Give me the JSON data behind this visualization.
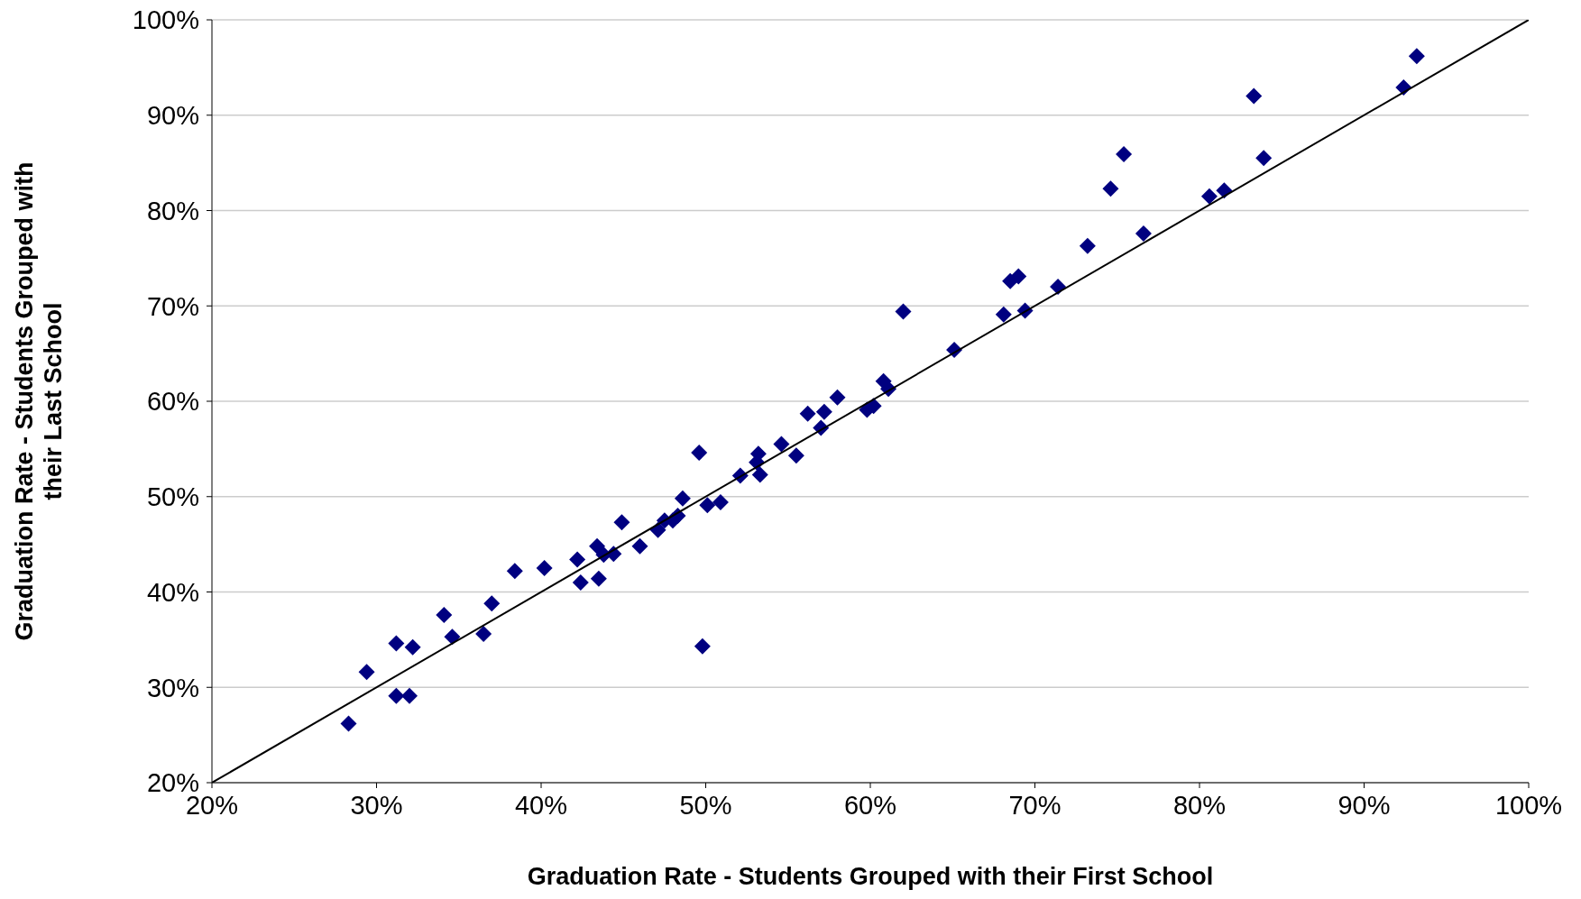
{
  "chart_data": {
    "type": "scatter",
    "xlabel": "Graduation Rate - Students Grouped with their First School",
    "ylabel": "Graduation Rate - Students Grouped with their Last School",
    "xlim": [
      20,
      100
    ],
    "ylim": [
      20,
      100
    ],
    "xticks": [
      {
        "value": 20,
        "label": "20%"
      },
      {
        "value": 30,
        "label": "30%"
      },
      {
        "value": 40,
        "label": "40%"
      },
      {
        "value": 50,
        "label": "50%"
      },
      {
        "value": 60,
        "label": "60%"
      },
      {
        "value": 70,
        "label": "70%"
      },
      {
        "value": 80,
        "label": "80%"
      },
      {
        "value": 90,
        "label": "90%"
      },
      {
        "value": 100,
        "label": "100%"
      }
    ],
    "yticks": [
      {
        "value": 20,
        "label": "20%"
      },
      {
        "value": 30,
        "label": "30%"
      },
      {
        "value": 40,
        "label": "40%"
      },
      {
        "value": 50,
        "label": "50%"
      },
      {
        "value": 60,
        "label": "60%"
      },
      {
        "value": 70,
        "label": "70%"
      },
      {
        "value": 80,
        "label": "80%"
      },
      {
        "value": 90,
        "label": "90%"
      },
      {
        "value": 100,
        "label": "100%"
      }
    ],
    "grid": "y",
    "legend": false,
    "marker": "diamond",
    "series": [
      {
        "color": "#000080",
        "x": [
          28.3,
          29.4,
          31.2,
          32.2,
          31.2,
          32.0,
          34.1,
          34.6,
          36.5,
          37.0,
          38.4,
          40.2,
          42.2,
          42.4,
          43.4,
          43.5,
          43.8,
          44.4,
          44.9,
          46.0,
          47.1,
          47.5,
          48.0,
          48.3,
          48.6,
          49.6,
          49.8,
          50.1,
          50.9,
          52.1,
          53.1,
          53.2,
          53.3,
          54.6,
          55.5,
          56.2,
          57.0,
          57.2,
          58.0,
          59.8,
          60.2,
          60.8,
          61.1,
          62.0,
          65.1,
          68.1,
          68.5,
          69.0,
          69.4,
          71.4,
          73.2,
          74.6,
          75.4,
          76.6,
          80.6,
          81.5,
          83.3,
          83.9,
          92.4,
          93.2
        ],
        "values": [
          26.2,
          31.6,
          34.6,
          34.2,
          29.1,
          29.1,
          37.6,
          35.3,
          35.6,
          38.8,
          42.2,
          42.5,
          43.4,
          41.0,
          44.8,
          41.4,
          43.9,
          44.0,
          47.3,
          44.8,
          46.5,
          47.5,
          47.5,
          48.0,
          49.8,
          54.6,
          34.3,
          49.1,
          49.4,
          52.2,
          53.6,
          54.5,
          52.3,
          55.5,
          54.3,
          58.7,
          57.2,
          58.9,
          60.4,
          59.1,
          59.5,
          62.1,
          61.3,
          69.4,
          65.4,
          69.1,
          72.6,
          73.1,
          69.5,
          72.0,
          76.3,
          82.3,
          85.9,
          77.6,
          81.5,
          82.1,
          92.0,
          85.5,
          92.9,
          96.2
        ]
      },
      {
        "type": "line",
        "color": "#000000",
        "marker": "none",
        "line_style": "solid",
        "x": [
          20,
          100
        ],
        "values": [
          20,
          100
        ]
      }
    ]
  }
}
